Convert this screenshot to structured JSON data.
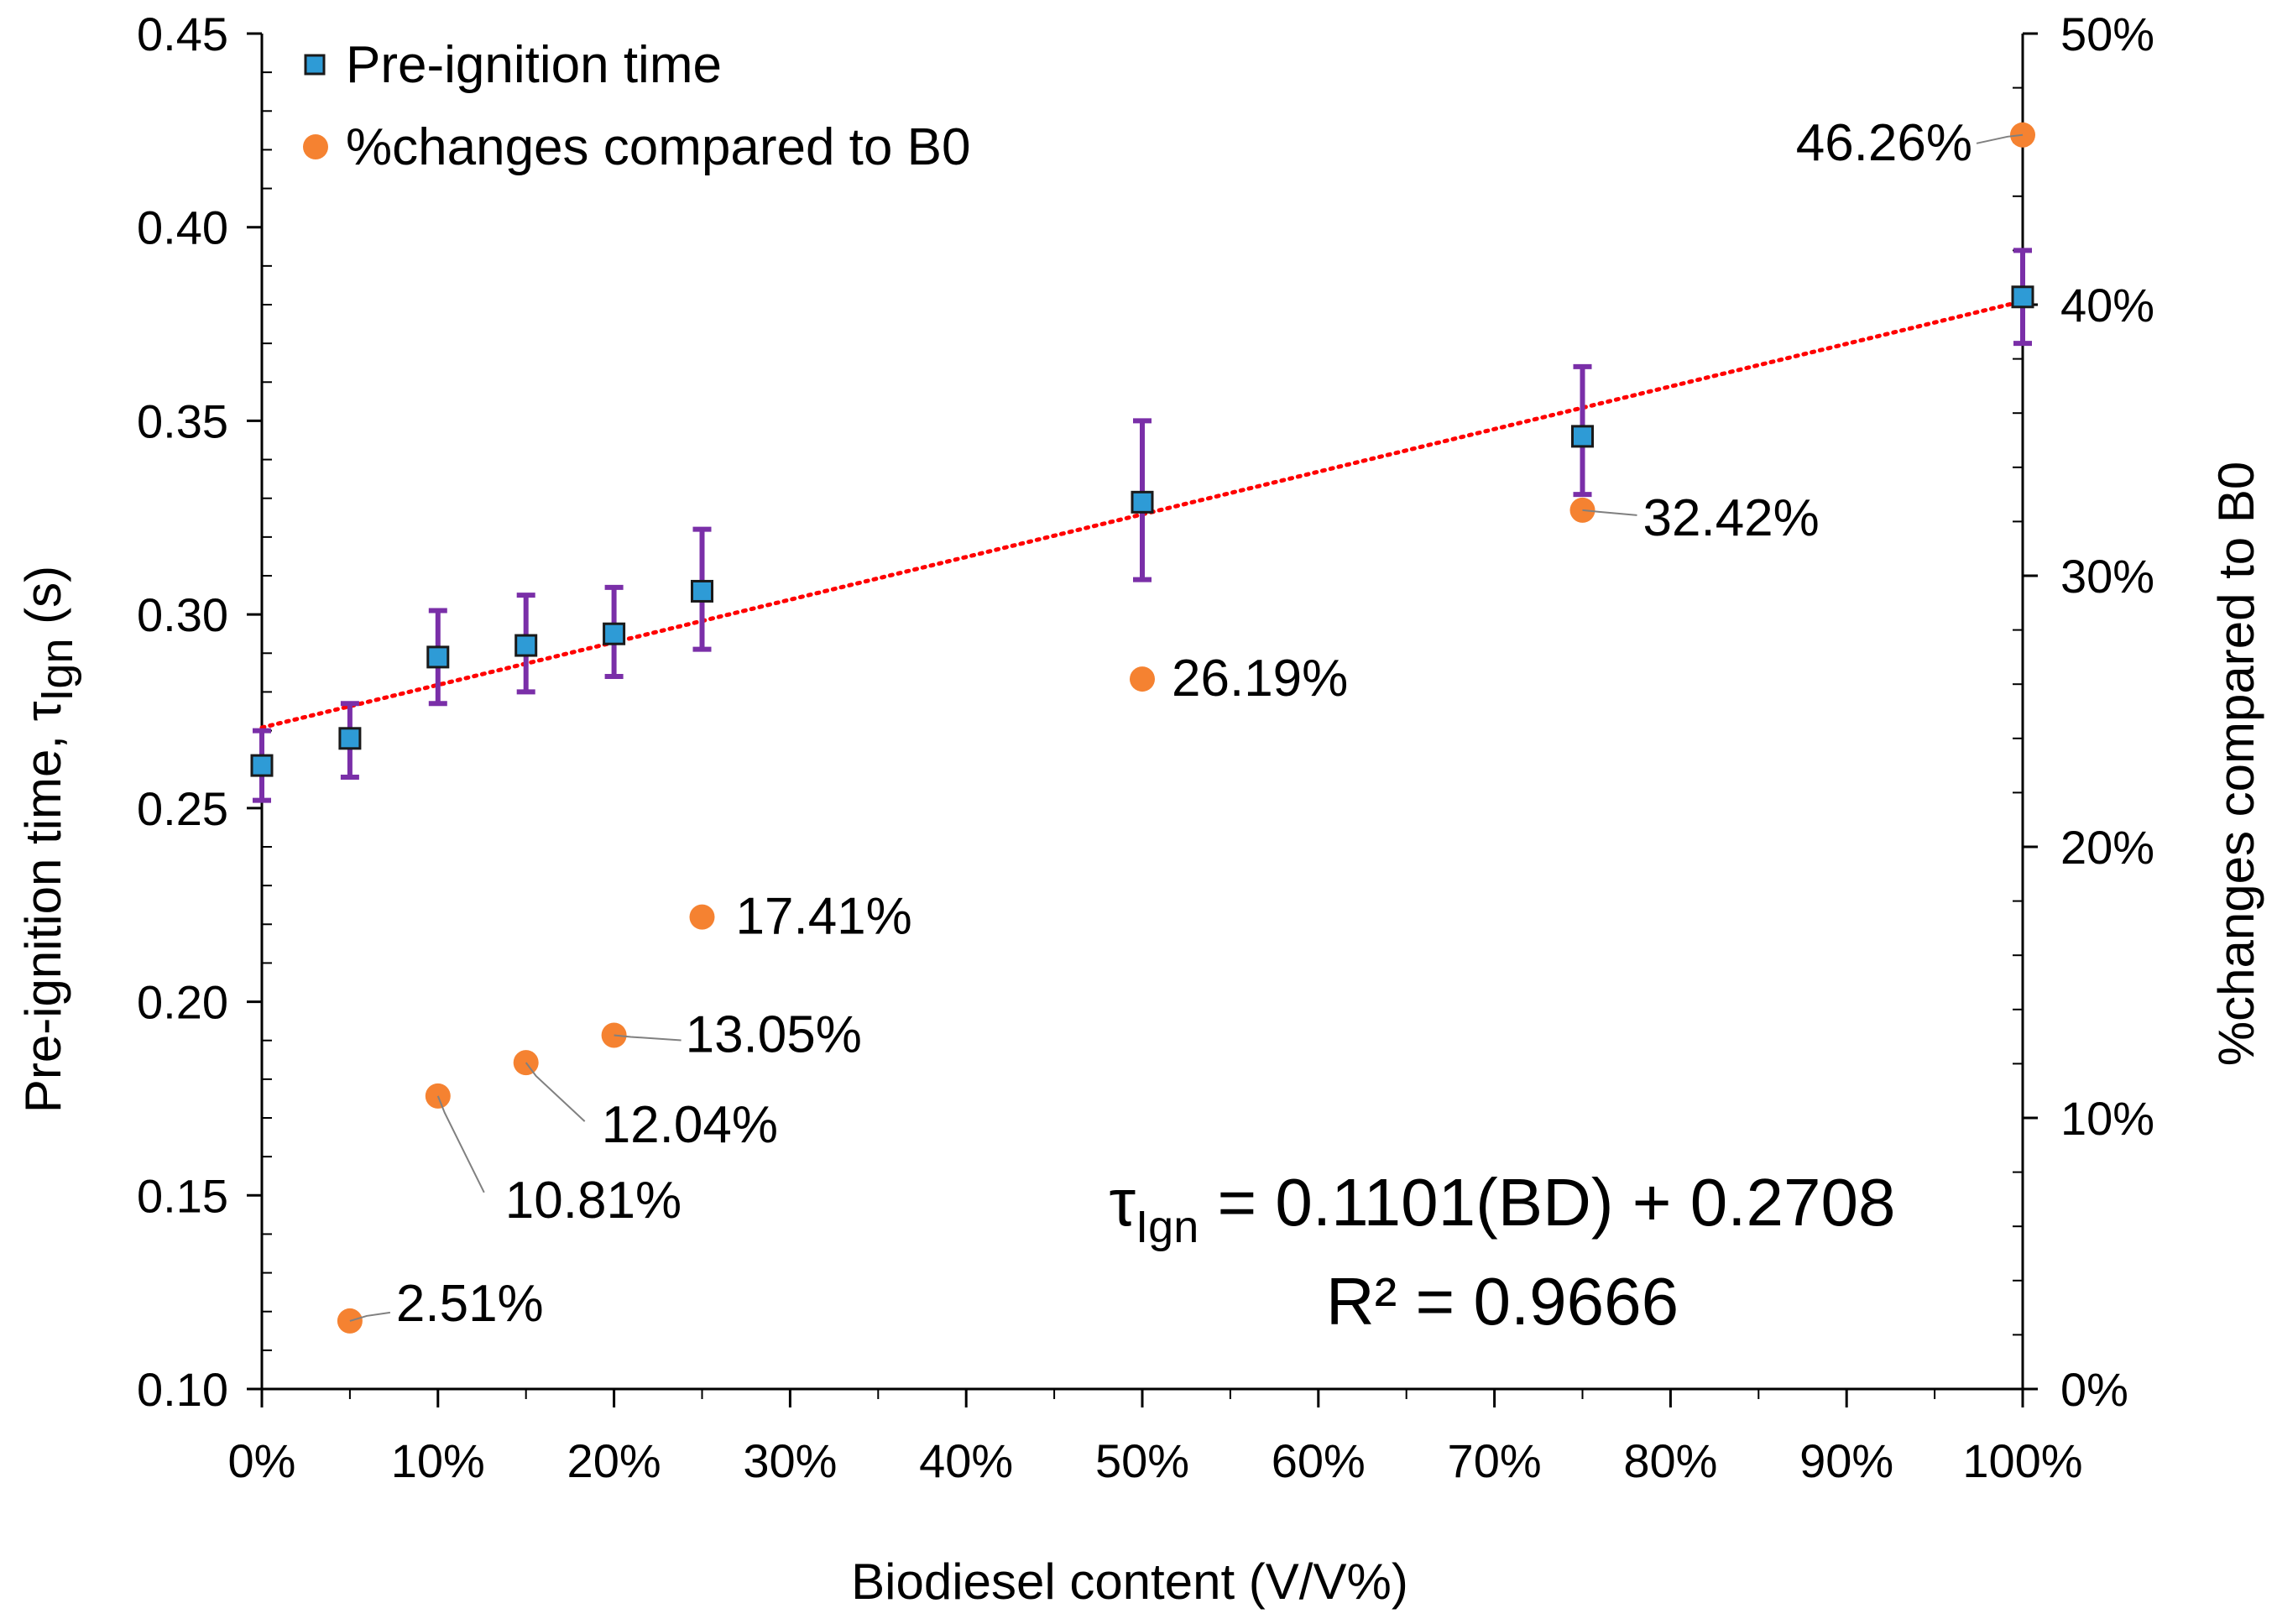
{
  "chart_data": {
    "type": "scatter",
    "xlabel": "Biodiesel content (V/V%)",
    "ylabel_main": "Pre-ignition time, τ",
    "ylabel_sub": "Ign",
    "ylabel_suffix": " (s)",
    "y2label": "%changes compared to B0",
    "xlim": [
      0,
      100
    ],
    "ylim": [
      0.1,
      0.45
    ],
    "y2lim": [
      0,
      50
    ],
    "x_ticks": [
      0,
      10,
      20,
      30,
      40,
      50,
      60,
      70,
      80,
      90,
      100
    ],
    "x_tick_labels": [
      "0%",
      "10%",
      "20%",
      "30%",
      "40%",
      "50%",
      "60%",
      "70%",
      "80%",
      "90%",
      "100%"
    ],
    "y_ticks": [
      0.1,
      0.15,
      0.2,
      0.25,
      0.3,
      0.35,
      0.4,
      0.45
    ],
    "y_tick_labels": [
      "0.10",
      "0.15",
      "0.20",
      "0.25",
      "0.30",
      "0.35",
      "0.40",
      "0.45"
    ],
    "y2_ticks": [
      0,
      10,
      20,
      30,
      40,
      50
    ],
    "y2_tick_labels": [
      "0%",
      "10%",
      "20%",
      "30%",
      "40%",
      "50%"
    ],
    "series": [
      {
        "name": "Pre-ignition time",
        "axis": "left",
        "marker": "square",
        "color": "#2e9bd6",
        "error_color": "#7a2fa8",
        "x": [
          0,
          5,
          10,
          15,
          20,
          25,
          50,
          75,
          100
        ],
        "y": [
          0.261,
          0.268,
          0.289,
          0.292,
          0.295,
          0.306,
          0.329,
          0.346,
          0.382
        ],
        "err_low": [
          0.252,
          0.258,
          0.277,
          0.28,
          0.284,
          0.291,
          0.309,
          0.331,
          0.37
        ],
        "err_high": [
          0.27,
          0.277,
          0.301,
          0.305,
          0.307,
          0.322,
          0.35,
          0.364,
          0.394
        ]
      },
      {
        "name": "%changes compared to B0",
        "axis": "right",
        "marker": "circle",
        "color": "#f58231",
        "x": [
          5,
          10,
          15,
          20,
          25,
          50,
          75,
          100
        ],
        "y": [
          2.51,
          10.81,
          12.04,
          13.05,
          17.41,
          26.19,
          32.42,
          46.26
        ],
        "labels": [
          "2.51%",
          "10.81%",
          "12.04%",
          "13.05%",
          "17.41%",
          "26.19%",
          "32.42%",
          "46.26%"
        ]
      }
    ],
    "trendline": {
      "type": "linear",
      "color": "#ff0000",
      "slope": 0.1101,
      "intercept": 0.2708,
      "equation_prefix": "τ",
      "equation_sub": "Ign",
      "equation_rest": " = 0.1101(BD) + 0.2708",
      "r2_text": "R² = 0.9666"
    },
    "legend": {
      "position": "top-left",
      "items": [
        "Pre-ignition time",
        "%changes compared to B0"
      ]
    }
  }
}
